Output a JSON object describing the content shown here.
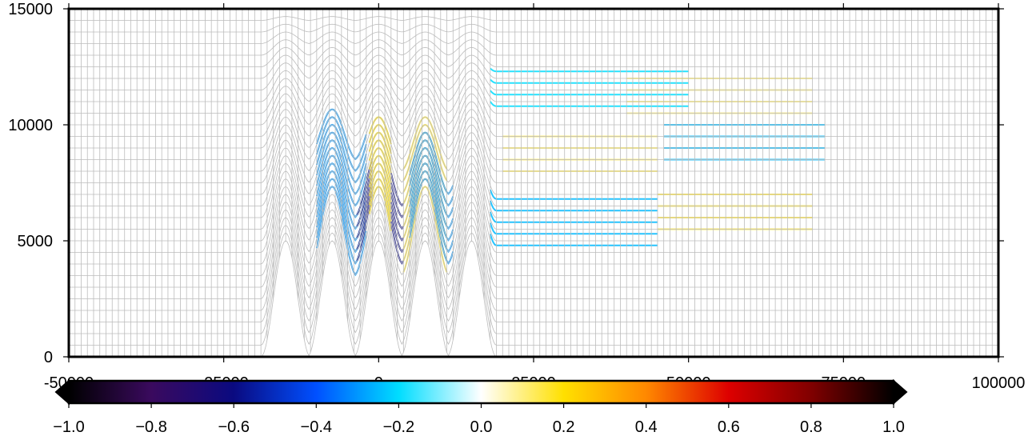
{
  "chart_data": {
    "type": "heatmap",
    "title": "",
    "xlabel": "",
    "ylabel": "",
    "xlim": [
      -50000,
      100000
    ],
    "ylim": [
      0,
      15000
    ],
    "x_ticks": [
      -50000,
      -25000,
      0,
      25000,
      50000,
      75000,
      100000
    ],
    "x_tick_labels": [
      "-50000",
      "-25000",
      "0",
      "25000",
      "50000",
      "75000",
      "100000"
    ],
    "y_ticks": [
      0,
      5000,
      10000,
      15000
    ],
    "y_tick_labels": [
      "0",
      "5000",
      "10000",
      "15000"
    ],
    "grid": true,
    "mesh": {
      "terrain_centers_x": [
        -15000,
        -7500,
        0,
        7500,
        15000
      ],
      "terrain_peak_height": 5000,
      "terrain_half_width": 4000
    },
    "field_patches": [
      {
        "x": [
          -10000,
          -2000
        ],
        "y": [
          3500,
          8500
        ],
        "value": -0.3
      },
      {
        "x": [
          -3500,
          -1000
        ],
        "y": [
          4000,
          6000
        ],
        "value": -0.6
      },
      {
        "x": [
          -1500,
          2000
        ],
        "y": [
          3500,
          8000
        ],
        "value": 0.2
      },
      {
        "x": [
          2000,
          4000
        ],
        "y": [
          4000,
          6500
        ],
        "value": -0.6
      },
      {
        "x": [
          4000,
          11000
        ],
        "y": [
          3500,
          8000
        ],
        "value": 0.15
      },
      {
        "x": [
          5000,
          12000
        ],
        "y": [
          4000,
          7000
        ],
        "value": -0.3
      },
      {
        "x": [
          18000,
          45000
        ],
        "y": [
          4800,
          7000
        ],
        "value": -0.25
      },
      {
        "x": [
          45000,
          70000
        ],
        "y": [
          5500,
          7300
        ],
        "value": 0.15
      },
      {
        "x": [
          20000,
          45000
        ],
        "y": [
          8000,
          9500
        ],
        "value": 0.12
      },
      {
        "x": [
          46000,
          72000
        ],
        "y": [
          8500,
          10000
        ],
        "value": -0.25
      },
      {
        "x": [
          18000,
          50000
        ],
        "y": [
          10800,
          12500
        ],
        "value": -0.2
      },
      {
        "x": [
          40000,
          70000
        ],
        "y": [
          10500,
          12000
        ],
        "value": 0.1
      }
    ],
    "colorbar": {
      "min": -1.0,
      "max": 1.0,
      "ticks": [
        -1.0,
        -0.8,
        -0.6,
        -0.4,
        -0.2,
        0.0,
        0.2,
        0.4,
        0.6,
        0.8,
        1.0
      ],
      "tick_labels": [
        "−1.0",
        "−0.8",
        "−0.6",
        "−0.4",
        "−0.2",
        "0.0",
        "0.2",
        "0.4",
        "0.6",
        "0.8",
        "1.0"
      ],
      "colors": [
        "#000000",
        "#3a0a5e",
        "#0a0a80",
        "#0050ff",
        "#00ddff",
        "#ffffff",
        "#ffe000",
        "#ff8800",
        "#dd0000",
        "#800000",
        "#000000"
      ]
    }
  }
}
